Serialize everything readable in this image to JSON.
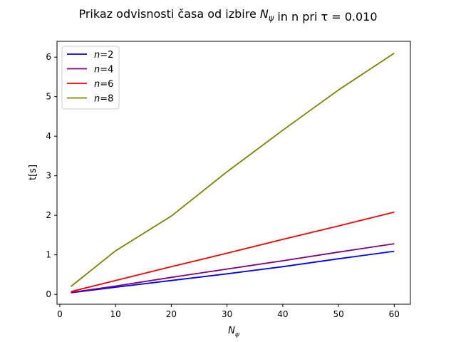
{
  "chart_data": {
    "type": "line",
    "title": "Prikaz odvisnosti časa od izbire N_ψ in n pri τ = 0.010",
    "xlabel": "N_ψ",
    "ylabel": "t[s]",
    "xlim": [
      -0.5,
      62.9
    ],
    "ylim": [
      -0.25,
      6.4
    ],
    "xticks": [
      0,
      10,
      20,
      30,
      40,
      50,
      60
    ],
    "yticks": [
      0,
      1,
      2,
      3,
      4,
      5,
      6
    ],
    "x": [
      2,
      10,
      20,
      30,
      40,
      50,
      60
    ],
    "grid": false,
    "legend_position": "top-left",
    "series": [
      {
        "name": "n=2",
        "color": "#0000ff",
        "values": [
          0.04,
          0.18,
          0.35,
          0.52,
          0.7,
          0.9,
          1.09
        ]
      },
      {
        "name": "n=4",
        "color": "#800080",
        "values": [
          0.05,
          0.21,
          0.43,
          0.64,
          0.85,
          1.07,
          1.28
        ]
      },
      {
        "name": "n=6",
        "color": "#ff0000",
        "values": [
          0.07,
          0.35,
          0.7,
          1.04,
          1.39,
          1.73,
          2.08
        ]
      },
      {
        "name": "n=8",
        "color": "#808000",
        "values": [
          0.2,
          1.1,
          1.98,
          3.1,
          4.15,
          5.17,
          6.1
        ]
      }
    ]
  }
}
